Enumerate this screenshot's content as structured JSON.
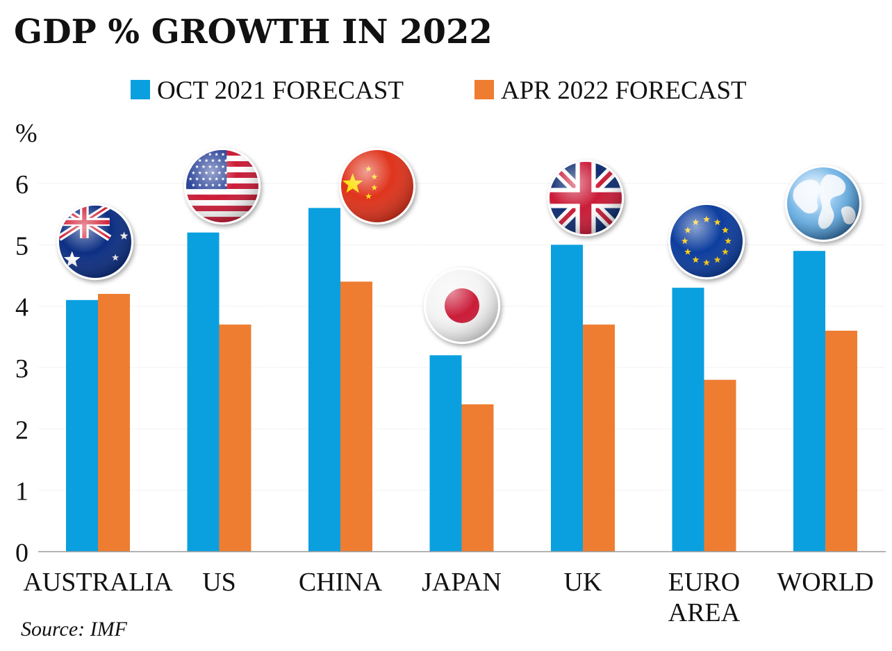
{
  "chart_data": {
    "type": "bar",
    "title": "GDP % GROWTH IN 2022",
    "ylabel": "%",
    "xlabel": "",
    "ylim": [
      0,
      6
    ],
    "yticks": [
      0,
      1,
      2,
      3,
      4,
      5,
      6
    ],
    "grid": true,
    "legend_position": "top",
    "categories": [
      {
        "lines": [
          "AUSTRALIA"
        ],
        "flag": "australia-flag-icon"
      },
      {
        "lines": [
          "US"
        ],
        "flag": "usa-flag-icon"
      },
      {
        "lines": [
          "CHINA"
        ],
        "flag": "china-flag-icon"
      },
      {
        "lines": [
          "JAPAN"
        ],
        "flag": "japan-flag-icon"
      },
      {
        "lines": [
          "UK"
        ],
        "flag": "uk-flag-icon"
      },
      {
        "lines": [
          "EURO",
          "AREA"
        ],
        "flag": "eu-flag-icon"
      },
      {
        "lines": [
          "WORLD"
        ],
        "flag": "globe-icon"
      }
    ],
    "series": [
      {
        "name": "OCT 2021 FORECAST",
        "color": "#0aa0e0",
        "values": [
          4.1,
          5.2,
          5.6,
          3.2,
          5.0,
          4.3,
          4.9
        ]
      },
      {
        "name": "APR 2022 FORECAST",
        "color": "#ee7d31",
        "values": [
          4.2,
          3.7,
          4.4,
          2.4,
          3.7,
          2.8,
          3.6
        ]
      }
    ],
    "source": "Source: IMF"
  }
}
